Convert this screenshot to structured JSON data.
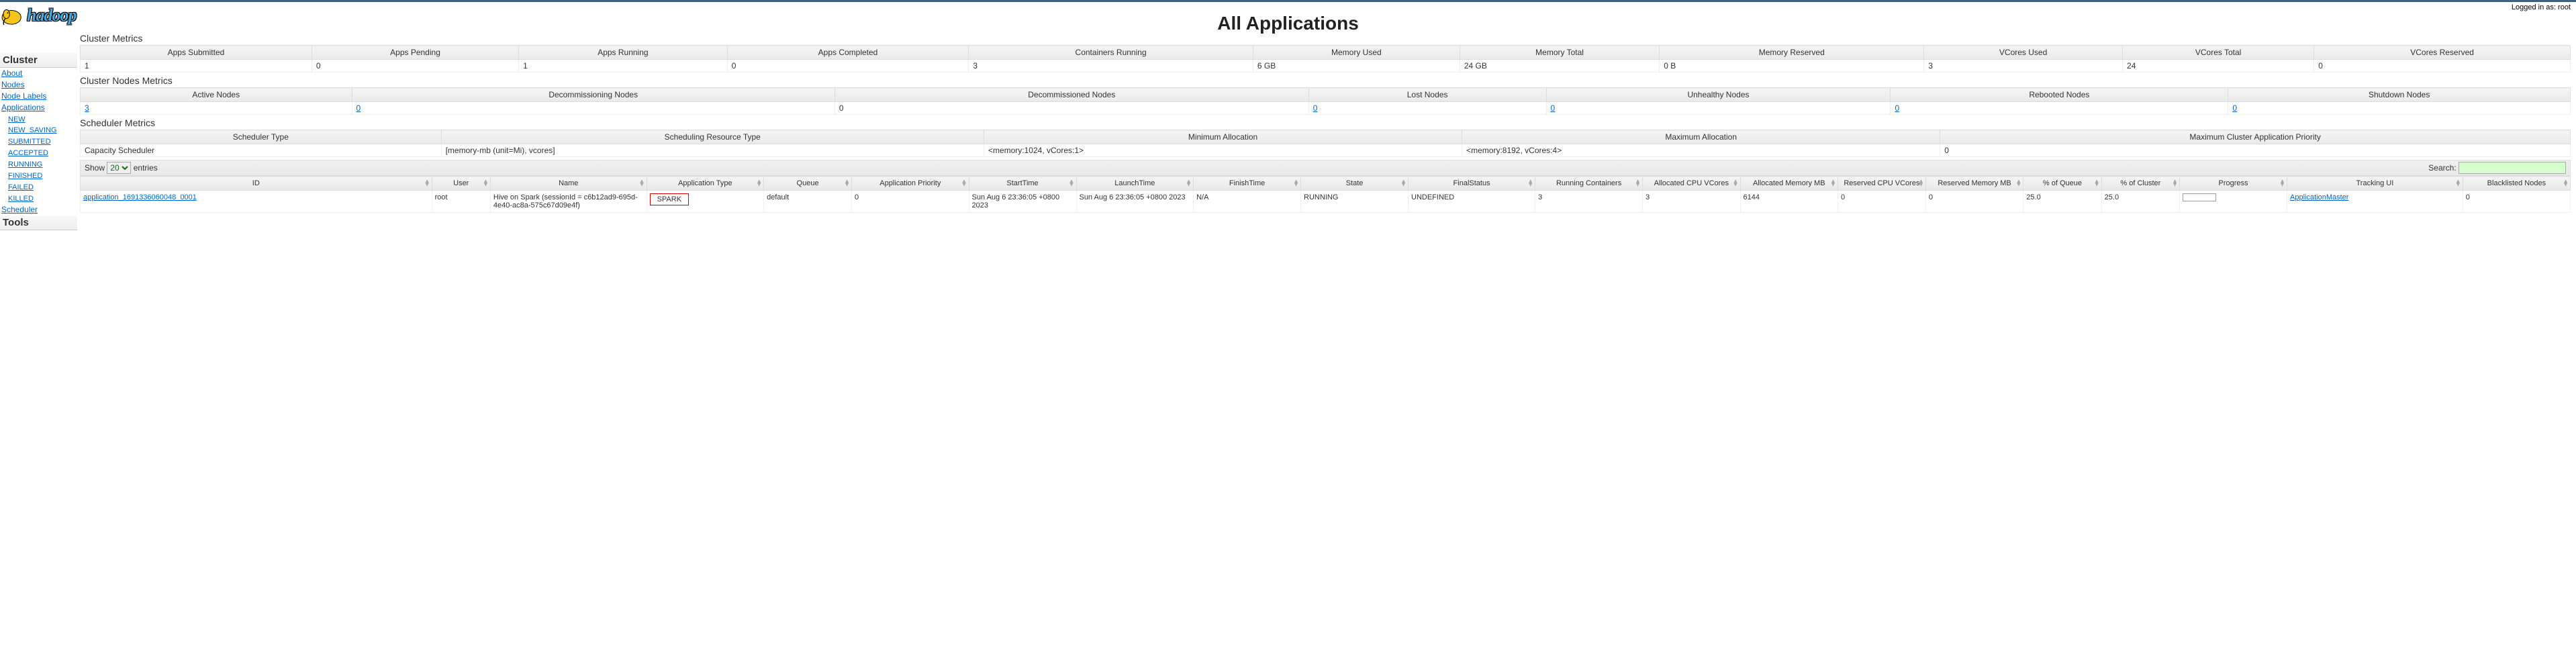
{
  "login": {
    "text": "Logged in as: root"
  },
  "page": {
    "title": "All Applications"
  },
  "logo": {
    "text": "hadoop"
  },
  "sidebar": {
    "cluster_heading": "Cluster",
    "items": [
      {
        "label": "About"
      },
      {
        "label": "Nodes"
      },
      {
        "label": "Node Labels"
      },
      {
        "label": "Applications"
      }
    ],
    "app_states": [
      {
        "label": "NEW"
      },
      {
        "label": "NEW_SAVING"
      },
      {
        "label": "SUBMITTED"
      },
      {
        "label": "ACCEPTED"
      },
      {
        "label": "RUNNING"
      },
      {
        "label": "FINISHED"
      },
      {
        "label": "FAILED"
      },
      {
        "label": "KILLED"
      }
    ],
    "scheduler": {
      "label": "Scheduler"
    },
    "tools_heading": "Tools"
  },
  "cluster_metrics": {
    "title": "Cluster Metrics",
    "headers": [
      "Apps Submitted",
      "Apps Pending",
      "Apps Running",
      "Apps Completed",
      "Containers Running",
      "Memory Used",
      "Memory Total",
      "Memory Reserved",
      "VCores Used",
      "VCores Total",
      "VCores Reserved"
    ],
    "values": [
      "1",
      "0",
      "1",
      "0",
      "3",
      "6 GB",
      "24 GB",
      "0 B",
      "3",
      "24",
      "0"
    ]
  },
  "node_metrics": {
    "title": "Cluster Nodes Metrics",
    "headers": [
      "Active Nodes",
      "Decommissioning Nodes",
      "Decommissioned Nodes",
      "Lost Nodes",
      "Unhealthy Nodes",
      "Rebooted Nodes",
      "Shutdown Nodes"
    ],
    "values": [
      "3",
      "0",
      "0",
      "0",
      "0",
      "0",
      "0"
    ],
    "links": [
      true,
      true,
      false,
      true,
      true,
      true,
      true
    ]
  },
  "scheduler_metrics": {
    "title": "Scheduler Metrics",
    "headers": [
      "Scheduler Type",
      "Scheduling Resource Type",
      "Minimum Allocation",
      "Maximum Allocation",
      "Maximum Cluster Application Priority"
    ],
    "values": [
      "Capacity Scheduler",
      "[memory-mb (unit=Mi), vcores]",
      "<memory:1024, vCores:1>",
      "<memory:8192, vCores:4>",
      "0"
    ]
  },
  "datatable": {
    "show_label": "Show",
    "entries_label": "entries",
    "page_size": "20",
    "search_label": "Search:",
    "columns": [
      "ID",
      "User",
      "Name",
      "Application Type",
      "Queue",
      "Application Priority",
      "StartTime",
      "LaunchTime",
      "FinishTime",
      "State",
      "FinalStatus",
      "Running Containers",
      "Allocated CPU VCores",
      "Allocated Memory MB",
      "Reserved CPU VCores",
      "Reserved Memory MB",
      "% of Queue",
      "% of Cluster",
      "Progress",
      "Tracking UI",
      "Blacklisted Nodes"
    ],
    "col_widths": [
      "180",
      "30",
      "80",
      "60",
      "45",
      "60",
      "55",
      "60",
      "55",
      "55",
      "65",
      "55",
      "50",
      "50",
      "45",
      "50",
      "40",
      "40",
      "55",
      "90",
      "55"
    ],
    "row": {
      "id": "application_1691336060048_0001",
      "user": "root",
      "name": "Hive on Spark (sessionId = c6b12ad9-695d-4e40-ac8a-575c67d09e4f)",
      "app_type": "SPARK",
      "queue": "default",
      "priority": "0",
      "start_time": "Sun Aug 6 23:36:05 +0800 2023",
      "launch_time": "Sun Aug 6 23:36:05 +0800 2023",
      "finish_time": "N/A",
      "state": "RUNNING",
      "final_status": "UNDEFINED",
      "running_containers": "3",
      "alloc_vcores": "3",
      "alloc_mem": "6144",
      "res_vcores": "0",
      "res_mem": "0",
      "pct_queue": "25.0",
      "pct_cluster": "25.0",
      "tracking_ui": "ApplicationMaster",
      "blacklisted": "0"
    }
  },
  "colors": {
    "topbar": "#406080",
    "link": "#0066cc",
    "header_bg_top": "#f5f5f5",
    "header_bg_bot": "#e8e8e8",
    "highlight_border": "#d00",
    "search_bg": "#d4ffcc"
  }
}
